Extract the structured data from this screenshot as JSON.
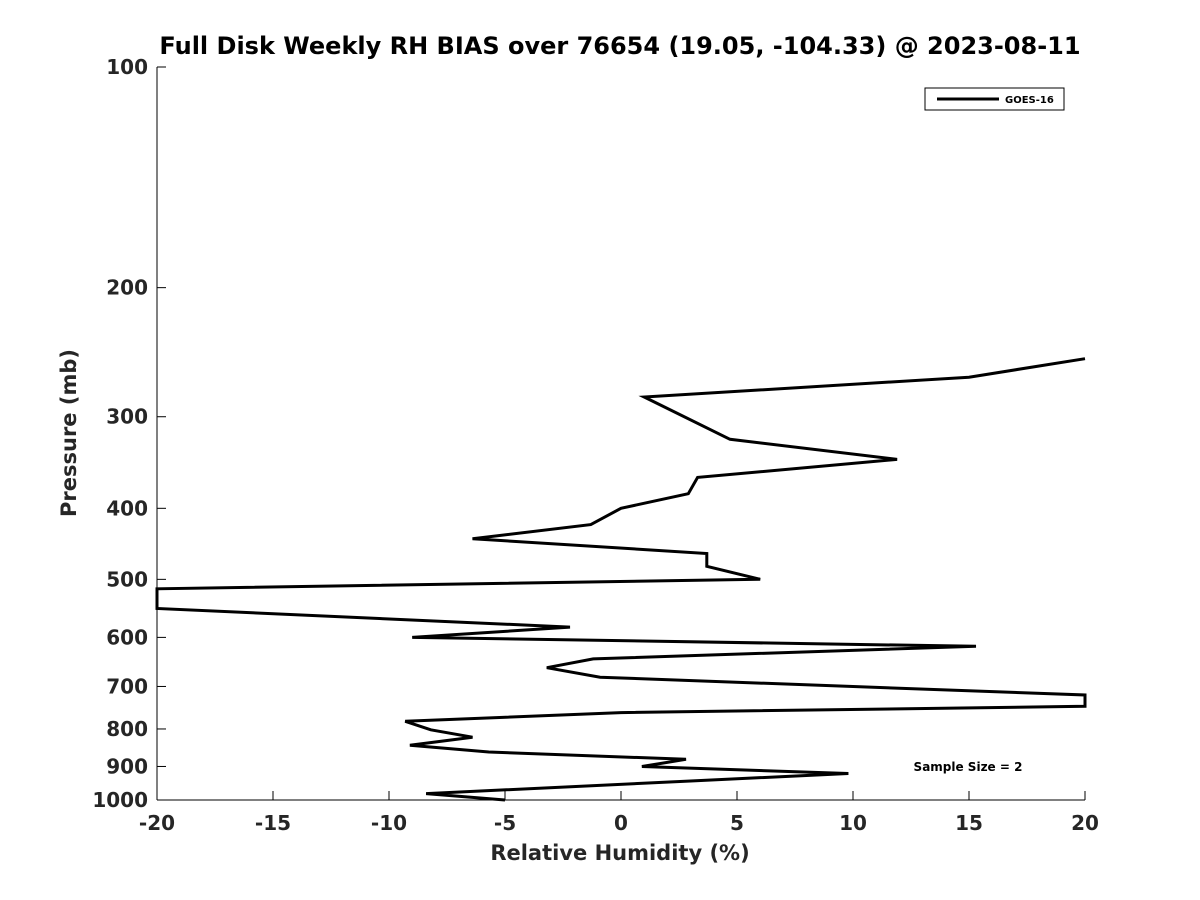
{
  "chart_data": {
    "type": "line",
    "title": "Full Disk Weekly RH BIAS over 76654 (19.05, -104.33) @ 2023-08-11",
    "xlabel": "Relative Humidity (%)",
    "ylabel": "Pressure (mb)",
    "xlim": [
      -20,
      20
    ],
    "ylim": [
      100,
      1000
    ],
    "y_scale": "log",
    "y_reversed": true,
    "grid": false,
    "legend_position": "top-right",
    "xticks": [
      -20,
      -15,
      -10,
      -5,
      0,
      5,
      10,
      15,
      20
    ],
    "xtick_labels": [
      "-20",
      "-15",
      "-10",
      "-5",
      "0",
      "5",
      "10",
      "15",
      "20"
    ],
    "yticks": [
      100,
      200,
      300,
      400,
      500,
      600,
      700,
      800,
      900,
      1000
    ],
    "ytick_labels": [
      "100",
      "200",
      "300",
      "400",
      "500",
      "600",
      "700",
      "800",
      "900",
      "1000"
    ],
    "annotation": "Sample Size = 2",
    "series": [
      {
        "name": "GOES-16",
        "color": "#000000",
        "x": [
          20.0,
          15.0,
          1.0,
          4.7,
          11.9,
          3.3,
          2.9,
          0.0,
          -1.3,
          -6.4,
          3.7,
          3.7,
          6.0,
          -20.0,
          -20.0,
          -2.2,
          -9.0,
          15.3,
          -1.2,
          -3.2,
          -0.9,
          10.0,
          20.0,
          20.0,
          0.0,
          -9.3,
          -8.2,
          -6.4,
          -9.1,
          -5.7,
          2.8,
          0.9,
          9.8,
          3.0,
          -8.4,
          -5.0
        ],
        "y": [
          250,
          265,
          282,
          322,
          343,
          363,
          382,
          400,
          421,
          440,
          461,
          480,
          500,
          515,
          548,
          581,
          600,
          617,
          642,
          660,
          680,
          700,
          719,
          745,
          760,
          781,
          802,
          821,
          842,
          860,
          880,
          900,
          920,
          942,
          980,
          1000
        ]
      }
    ]
  }
}
